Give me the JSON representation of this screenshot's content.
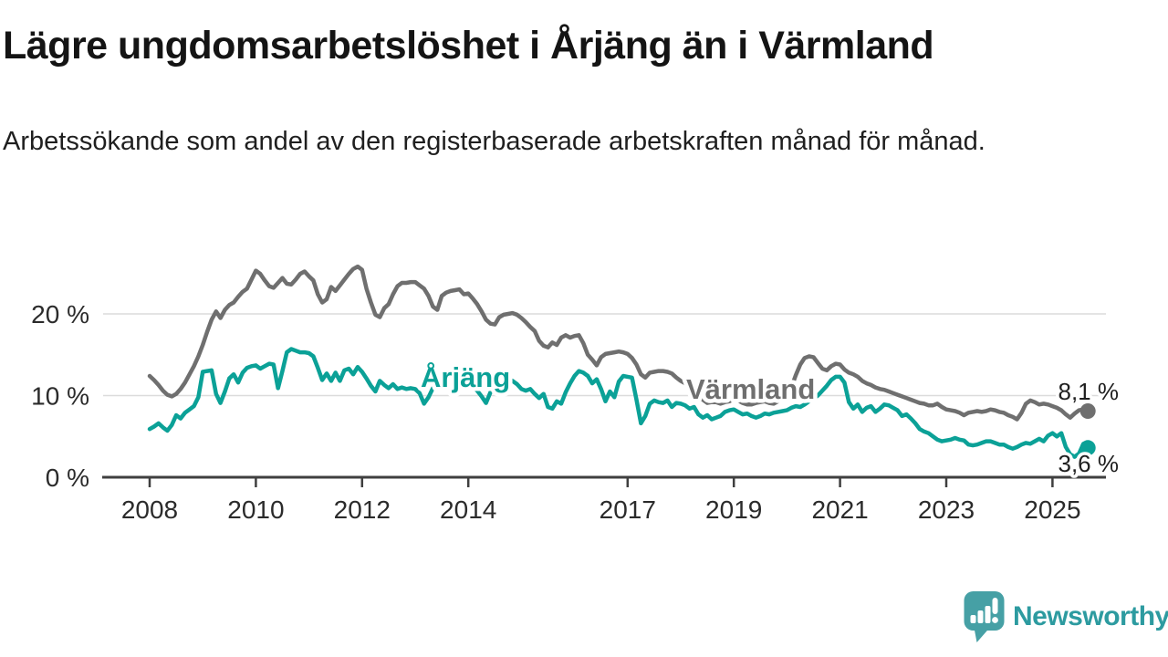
{
  "chart_data": {
    "type": "line",
    "title": "Lägre ungdomsarbetslöshet i Årjäng än i Värmland",
    "subtitle": "Arbetssökande som andel av den registerbaserade arbetskraften månad för månad.",
    "unit": "%",
    "frequency": "monthly",
    "x_start_year": 2008,
    "x_end": "2025-09",
    "ylim": [
      0,
      27.5
    ],
    "grid": "horizontal",
    "legend_position": "inline-labels",
    "x_ticks": [
      {
        "year": 2008,
        "label": "2008"
      },
      {
        "year": 2010,
        "label": "2010"
      },
      {
        "year": 2012,
        "label": "2012"
      },
      {
        "year": 2014,
        "label": "2014"
      },
      {
        "year": 2017,
        "label": "2017"
      },
      {
        "year": 2019,
        "label": "2019"
      },
      {
        "year": 2021,
        "label": "2021"
      },
      {
        "year": 2023,
        "label": "2023"
      },
      {
        "year": 2025,
        "label": "2025"
      }
    ],
    "y_ticks": [
      {
        "value": 0,
        "label": "0 %"
      },
      {
        "value": 10,
        "label": "10 %"
      },
      {
        "value": 20,
        "label": "20 %"
      }
    ],
    "series": [
      {
        "name": "Värmland",
        "color": "#6f6f6f",
        "end_label": "8,1 %",
        "last_value": 8.1,
        "values": [
          12.4,
          11.9,
          11.3,
          10.6,
          10.1,
          9.9,
          10.2,
          10.8,
          11.6,
          12.6,
          13.6,
          14.8,
          16.2,
          17.8,
          19.3,
          20.3,
          19.5,
          20.5,
          21.1,
          21.4,
          22.1,
          22.7,
          23.1,
          24.2,
          25.3,
          24.9,
          24.1,
          23.4,
          23.2,
          23.8,
          24.4,
          23.7,
          23.6,
          24.2,
          24.9,
          25.2,
          24.6,
          24.1,
          22.4,
          21.4,
          21.8,
          23.3,
          22.8,
          23.5,
          24.2,
          24.9,
          25.5,
          25.8,
          25.4,
          23.1,
          21.4,
          19.9,
          19.6,
          20.7,
          21.2,
          22.4,
          23.4,
          23.8,
          23.8,
          23.9,
          23.9,
          23.5,
          23.1,
          22.2,
          20.9,
          20.5,
          22.2,
          22.6,
          22.8,
          22.9,
          23.0,
          22.4,
          22.5,
          21.9,
          21.2,
          20.3,
          19.3,
          18.8,
          18.7,
          19.6,
          19.9,
          20.0,
          20.1,
          19.9,
          19.5,
          19.0,
          18.4,
          17.9,
          16.7,
          16.1,
          15.9,
          16.5,
          16.2,
          17.1,
          17.4,
          17.1,
          17.3,
          17.4,
          16.4,
          15.0,
          14.4,
          13.7,
          14.7,
          15.1,
          15.2,
          15.3,
          15.4,
          15.3,
          15.1,
          14.6,
          13.8,
          12.6,
          12.2,
          12.8,
          12.9,
          13.0,
          13.0,
          12.9,
          12.7,
          12.2,
          11.8,
          11.5,
          11.0,
          10.4,
          9.9,
          9.5,
          9.1,
          9.2,
          9.2,
          9.0,
          9.2,
          9.3,
          9.6,
          9.4,
          9.1,
          8.9,
          8.9,
          9.1,
          9.2,
          9.3,
          9.1,
          9.0,
          9.3,
          9.6,
          10.2,
          11.0,
          12.5,
          13.8,
          14.6,
          14.8,
          14.7,
          14.0,
          13.3,
          13.1,
          13.6,
          13.9,
          13.8,
          13.2,
          12.8,
          12.6,
          12.3,
          11.8,
          11.5,
          11.3,
          11.0,
          10.8,
          10.7,
          10.5,
          10.3,
          10.1,
          9.9,
          9.7,
          9.5,
          9.3,
          9.1,
          9.0,
          8.8,
          8.8,
          9.0,
          8.6,
          8.3,
          8.2,
          8.1,
          7.9,
          7.6,
          7.9,
          8.0,
          8.1,
          8.0,
          8.1,
          8.3,
          8.2,
          8.0,
          7.9,
          7.6,
          7.4,
          7.1,
          7.9,
          9.0,
          9.4,
          9.2,
          8.9,
          9.0,
          8.9,
          8.7,
          8.5,
          8.2,
          7.7,
          7.3,
          7.8,
          8.2,
          8.3,
          8.1
        ]
      },
      {
        "name": "Årjäng",
        "color": "#0ba197",
        "end_label": "3,6 %",
        "last_value": 3.6,
        "values": [
          5.9,
          6.2,
          6.6,
          6.1,
          5.7,
          6.4,
          7.6,
          7.2,
          7.9,
          8.3,
          8.7,
          9.8,
          12.9,
          13.0,
          13.1,
          10.2,
          9.1,
          10.5,
          12.1,
          12.6,
          11.6,
          12.8,
          13.4,
          13.6,
          13.7,
          13.3,
          13.6,
          13.9,
          13.8,
          10.9,
          13.0,
          15.3,
          15.7,
          15.5,
          15.3,
          15.3,
          15.2,
          14.8,
          13.4,
          11.9,
          12.7,
          11.8,
          12.8,
          11.8,
          13.1,
          13.3,
          12.6,
          13.5,
          12.9,
          12.1,
          11.2,
          10.5,
          11.8,
          11.3,
          10.9,
          11.4,
          10.8,
          11.0,
          10.8,
          10.9,
          10.8,
          10.3,
          9.0,
          9.8,
          10.9,
          11.2,
          11.4,
          11.0,
          11.3,
          11.1,
          11.2,
          11.0,
          11.2,
          11.0,
          10.6,
          9.9,
          9.1,
          10.4,
          11.3,
          11.9,
          12.2,
          12.1,
          11.8,
          11.4,
          10.8,
          10.6,
          10.8,
          10.2,
          9.7,
          10.2,
          8.6,
          8.4,
          9.3,
          9.0,
          10.4,
          11.5,
          12.4,
          13.0,
          12.8,
          12.4,
          11.5,
          12.0,
          10.8,
          9.3,
          10.5,
          9.8,
          11.7,
          12.4,
          12.3,
          12.2,
          9.5,
          6.6,
          7.5,
          9.0,
          9.4,
          9.2,
          9.1,
          9.4,
          8.6,
          9.1,
          9.0,
          8.8,
          8.4,
          8.6,
          7.7,
          7.3,
          7.6,
          7.1,
          7.3,
          7.5,
          8.0,
          8.2,
          8.3,
          8.0,
          7.7,
          7.8,
          7.5,
          7.3,
          7.5,
          7.8,
          7.7,
          7.9,
          8.0,
          8.1,
          8.2,
          8.5,
          8.7,
          8.6,
          8.9,
          9.3,
          9.6,
          10.0,
          10.6,
          11.2,
          11.9,
          12.3,
          12.3,
          11.6,
          9.2,
          8.4,
          8.9,
          8.0,
          8.5,
          8.7,
          8.0,
          8.4,
          8.9,
          8.8,
          8.5,
          8.2,
          7.5,
          7.7,
          7.2,
          6.6,
          5.9,
          5.6,
          5.4,
          5.0,
          4.6,
          4.4,
          4.5,
          4.6,
          4.8,
          4.6,
          4.5,
          4.0,
          3.9,
          4.0,
          4.2,
          4.4,
          4.4,
          4.2,
          4.0,
          4.0,
          3.7,
          3.5,
          3.7,
          4.0,
          4.2,
          4.1,
          4.4,
          4.7,
          4.4,
          5.1,
          5.4,
          5.0,
          5.4,
          3.7,
          2.8,
          2.5,
          2.9,
          4.1,
          3.6
        ]
      }
    ]
  },
  "logo": {
    "text": "Newsworthy",
    "icon": "newsworthy-speech-bubble-bar-chart-icon",
    "icon_color": "#46a0a5",
    "text_color": "#2d9ba0"
  },
  "colors": {
    "varmland_line": "#6f6f6f",
    "arjang_line": "#0ba197",
    "gridline": "#dcdcdc",
    "axis": "#3f3f3f",
    "title_text": "#141414"
  }
}
